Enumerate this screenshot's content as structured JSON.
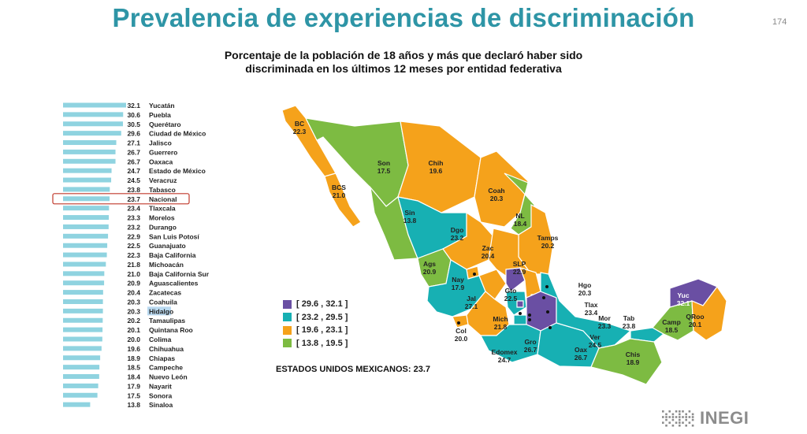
{
  "page": {
    "title": "Prevalencia de experiencias de discriminación",
    "page_number": "174",
    "subtitle_line1": "Porcentaje de la población de 18 años y más que declaró haber sido",
    "subtitle_line2": "discriminada en los últimos 12 meses por entidad federativa"
  },
  "chart_data": [
    {
      "type": "bar",
      "orientation": "horizontal",
      "categories": [
        "Yucatán",
        "Puebla",
        "Querétaro",
        "Ciudad de México",
        "Jalisco",
        "Guerrero",
        "Oaxaca",
        "Estado de México",
        "Veracruz",
        "Tabasco",
        "Nacional",
        "Tlaxcala",
        "Morelos",
        "Durango",
        "San Luis Potosí",
        "Guanajuato",
        "Baja California",
        "Michoacán",
        "Baja California Sur",
        "Aguascalientes",
        "Zacatecas",
        "Coahuila",
        "Hidalgo",
        "Tamaulipas",
        "Quintana Roo",
        "Colima",
        "Chihuahua",
        "Chiapas",
        "Campeche",
        "Nuevo León",
        "Nayarit",
        "Sonora",
        "Sinaloa"
      ],
      "values": [
        32.1,
        30.6,
        30.5,
        29.6,
        27.1,
        26.7,
        26.7,
        24.7,
        24.5,
        23.8,
        23.7,
        23.4,
        23.3,
        23.2,
        22.9,
        22.5,
        22.3,
        21.8,
        21.0,
        20.9,
        20.4,
        20.3,
        20.3,
        20.2,
        20.1,
        20.0,
        19.6,
        18.9,
        18.5,
        18.4,
        17.9,
        17.5,
        13.8
      ],
      "value_labels": [
        "32.1",
        "30.6",
        "30.5",
        "29.6",
        "27.1",
        "26.7",
        "26.7",
        "24.7",
        "24.5",
        "23.8",
        "23.7",
        "23.4",
        "23.3",
        "23.2",
        "22.9",
        "22.5",
        "22.3",
        "21.8",
        "21.0",
        "20.9",
        "20.4",
        "20.3",
        "20.3",
        "20.2",
        "20.1",
        "20.0",
        "19.6",
        "18.9",
        "18.5",
        "18.4",
        "17.9",
        "17.5",
        "13.8"
      ],
      "highlighted_category": "Nacional",
      "selected_label": "Hidalgo",
      "xlim": [
        0,
        32.1
      ],
      "bar_color": "#8fd3e0",
      "highlight_box_color": "#c0392b"
    },
    {
      "type": "choropleth",
      "legend": {
        "placement": "bottom-left",
        "items": [
          {
            "label": "[ 29.6 , 32.1 ]",
            "color": "#6a4fa3"
          },
          {
            "label": "[ 23.2 , 29.5 ]",
            "color": "#17b0b3"
          },
          {
            "label": "[ 19.6 , 23.1 ]",
            "color": "#f5a21b"
          },
          {
            "label": "[ 13.8 , 19.5 ]",
            "color": "#7dbb42"
          }
        ]
      },
      "states": [
        {
          "abbr": "BC",
          "value": "22.3",
          "class": 2
        },
        {
          "abbr": "BCS",
          "value": "21.0",
          "class": 2
        },
        {
          "abbr": "Son",
          "value": "17.5",
          "class": 3
        },
        {
          "abbr": "Chih",
          "value": "19.6",
          "class": 2
        },
        {
          "abbr": "Coah",
          "value": "20.3",
          "class": 2
        },
        {
          "abbr": "NL",
          "value": "18.4",
          "class": 3
        },
        {
          "abbr": "Tamps",
          "value": "20.2",
          "class": 2
        },
        {
          "abbr": "Sin",
          "value": "13.8",
          "class": 3
        },
        {
          "abbr": "Dgo",
          "value": "23.2",
          "class": 1
        },
        {
          "abbr": "Zac",
          "value": "20.4",
          "class": 2
        },
        {
          "abbr": "SLP",
          "value": "22.9",
          "class": 2
        },
        {
          "abbr": "Ags",
          "value": "20.9",
          "class": 2
        },
        {
          "abbr": "Nay",
          "value": "17.9",
          "class": 3
        },
        {
          "abbr": "Jal",
          "value": "27.1",
          "class": 1
        },
        {
          "abbr": "Gto",
          "value": "22.5",
          "class": 2
        },
        {
          "abbr": "Qro",
          "value": "30.5",
          "class": 0
        },
        {
          "abbr": "Hgo",
          "value": "20.3",
          "class": 2
        },
        {
          "abbr": "Col",
          "value": "20.0",
          "class": 2
        },
        {
          "abbr": "Mich",
          "value": "21.8",
          "class": 2
        },
        {
          "abbr": "Edomex",
          "value": "24.7",
          "class": 1
        },
        {
          "abbr": "CDMX",
          "value": "29.6",
          "class": 0
        },
        {
          "abbr": "Mor",
          "value": "23.3",
          "class": 1
        },
        {
          "abbr": "Tlax",
          "value": "23.4",
          "class": 1
        },
        {
          "abbr": "Pue",
          "value": "30.6",
          "class": 0
        },
        {
          "abbr": "Gro",
          "value": "26.7",
          "class": 1
        },
        {
          "abbr": "Oax",
          "value": "26.7",
          "class": 1
        },
        {
          "abbr": "Ver",
          "value": "24.5",
          "class": 1
        },
        {
          "abbr": "Tab",
          "value": "23.8",
          "class": 1
        },
        {
          "abbr": "Chis",
          "value": "18.9",
          "class": 3
        },
        {
          "abbr": "Camp",
          "value": "18.5",
          "class": 3
        },
        {
          "abbr": "Yuc",
          "value": "32.1",
          "class": 0
        },
        {
          "abbr": "QRoo",
          "value": "20.1",
          "class": 2
        }
      ],
      "national_label": "ESTADOS UNIDOS MEXICANOS:  23.7"
    }
  ],
  "logo": {
    "text": "INEGI"
  }
}
